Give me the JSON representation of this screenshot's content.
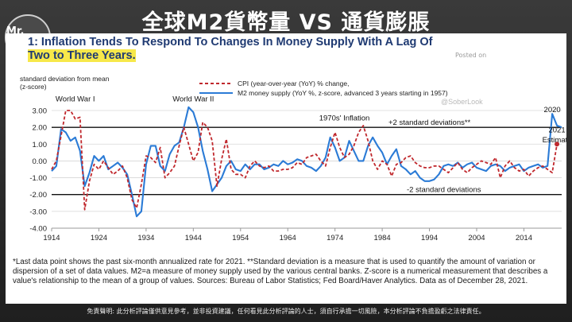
{
  "video": {
    "title": "全球M2貨幣量 VS 通貨膨脹",
    "logo_text": "Mr. Carl",
    "disclaimer": "免責聲明: 此分析評論僅供意見參考，並非投資建議，任何看見此分析評論的人士，須自行承擔一切風險，本分析評論不負擔盈虧之法律責任。"
  },
  "panel": {
    "title_line1": "1: Inflation Tends To Respond To Changes In Money Supply With A Lag Of",
    "title_line2": "Two to Three Years.",
    "posted": "Posted on",
    "watermark": "@SoberLook",
    "footnote": "*Last data point shows the past six-month annualized rate for 2021. **Standard deviation is a measure that is used to quantify the amount of variation or dispersion of a set of data values. M2=a measure of money supply used by the various central banks. Z-score is a numerical measurement that describes a value's relationship to the mean of a group of values. Sources: Bureau of Labor Statistics; Fed Board/Haver Analytics. Data as of December 28, 2021."
  },
  "chart_data": {
    "type": "line",
    "ylabel": "standard deviation from mean (z-score)",
    "ylim": [
      -4.0,
      3.0
    ],
    "yticks": [
      "3.00",
      "2.00",
      "1.00",
      "0.00",
      "-1.00",
      "-2.00",
      "-3.00",
      "-4.00"
    ],
    "xlim": [
      1914,
      2022
    ],
    "xticks": [
      "1914",
      "1924",
      "1934",
      "1944",
      "1954",
      "1964",
      "1974",
      "1984",
      "1994",
      "2004",
      "2014"
    ],
    "reference_lines": [
      {
        "y": 2,
        "label": "+2 standard deviations**"
      },
      {
        "y": -2,
        "label": "-2 standard deviations"
      }
    ],
    "annotations": [
      {
        "text": "World War I",
        "x": 1919,
        "y": 3.55
      },
      {
        "text": "World War II",
        "x": 1944,
        "y": 3.55
      },
      {
        "text": "1970s' Inflation",
        "x": 1976,
        "y": 2.4
      },
      {
        "text": "2020",
        "x": 2020,
        "y": 2.9
      },
      {
        "text": "2021",
        "x": 2021,
        "y": 1.7
      },
      {
        "text": "Estimate",
        "x": 2021,
        "y": 1.1
      }
    ],
    "series": [
      {
        "name": "CPI (year-over-year (YoY) % change,",
        "color": "#c0282d",
        "dash": true,
        "points": [
          [
            1914,
            -0.5
          ],
          [
            1915,
            0.0
          ],
          [
            1916,
            1.5
          ],
          [
            1917,
            3.0
          ],
          [
            1918,
            3.0
          ],
          [
            1919,
            2.5
          ],
          [
            1920,
            2.6
          ],
          [
            1921,
            -2.9
          ],
          [
            1922,
            -1.2
          ],
          [
            1923,
            -0.2
          ],
          [
            1924,
            -0.5
          ],
          [
            1925,
            0.0
          ],
          [
            1926,
            -0.4
          ],
          [
            1927,
            -0.8
          ],
          [
            1928,
            -0.6
          ],
          [
            1929,
            -0.3
          ],
          [
            1930,
            -1.0
          ],
          [
            1931,
            -2.3
          ],
          [
            1932,
            -2.8
          ],
          [
            1933,
            -1.4
          ],
          [
            1934,
            0.3
          ],
          [
            1935,
            0.2
          ],
          [
            1936,
            -0.1
          ],
          [
            1937,
            0.8
          ],
          [
            1938,
            -1.0
          ],
          [
            1939,
            -0.7
          ],
          [
            1940,
            -0.3
          ],
          [
            1941,
            0.9
          ],
          [
            1942,
            2.0
          ],
          [
            1943,
            1.0
          ],
          [
            1944,
            0.0
          ],
          [
            1945,
            0.5
          ],
          [
            1946,
            2.3
          ],
          [
            1947,
            2.0
          ],
          [
            1948,
            1.2
          ],
          [
            1949,
            -1.5
          ],
          [
            1950,
            0.1
          ],
          [
            1951,
            1.3
          ],
          [
            1952,
            -0.5
          ],
          [
            1953,
            -0.8
          ],
          [
            1954,
            -0.8
          ],
          [
            1955,
            -1.0
          ],
          [
            1956,
            -0.3
          ],
          [
            1957,
            0.0
          ],
          [
            1958,
            -0.3
          ],
          [
            1959,
            -0.4
          ],
          [
            1960,
            -0.3
          ],
          [
            1961,
            -0.6
          ],
          [
            1962,
            -0.6
          ],
          [
            1963,
            -0.5
          ],
          [
            1964,
            -0.5
          ],
          [
            1965,
            -0.4
          ],
          [
            1966,
            -0.1
          ],
          [
            1967,
            -0.2
          ],
          [
            1968,
            0.2
          ],
          [
            1969,
            0.3
          ],
          [
            1970,
            0.4
          ],
          [
            1971,
            0.0
          ],
          [
            1972,
            -0.3
          ],
          [
            1973,
            0.8
          ],
          [
            1974,
            1.7
          ],
          [
            1975,
            0.8
          ],
          [
            1976,
            0.2
          ],
          [
            1977,
            0.4
          ],
          [
            1978,
            0.9
          ],
          [
            1979,
            1.7
          ],
          [
            1980,
            2.1
          ],
          [
            1981,
            1.2
          ],
          [
            1982,
            0.0
          ],
          [
            1983,
            -0.5
          ],
          [
            1984,
            0.0
          ],
          [
            1985,
            -0.2
          ],
          [
            1986,
            -0.9
          ],
          [
            1987,
            -0.2
          ],
          [
            1988,
            -0.1
          ],
          [
            1989,
            0.2
          ],
          [
            1990,
            0.3
          ],
          [
            1991,
            -0.1
          ],
          [
            1992,
            -0.3
          ],
          [
            1993,
            -0.4
          ],
          [
            1994,
            -0.4
          ],
          [
            1995,
            -0.3
          ],
          [
            1996,
            -0.3
          ],
          [
            1997,
            -0.5
          ],
          [
            1998,
            -0.7
          ],
          [
            1999,
            -0.4
          ],
          [
            2000,
            -0.1
          ],
          [
            2001,
            -0.5
          ],
          [
            2002,
            -0.7
          ],
          [
            2003,
            -0.4
          ],
          [
            2004,
            -0.2
          ],
          [
            2005,
            0.0
          ],
          [
            2006,
            -0.1
          ],
          [
            2007,
            -0.2
          ],
          [
            2008,
            0.2
          ],
          [
            2009,
            -1.0
          ],
          [
            2010,
            -0.3
          ],
          [
            2011,
            0.0
          ],
          [
            2012,
            -0.4
          ],
          [
            2013,
            -0.6
          ],
          [
            2014,
            -0.5
          ],
          [
            2015,
            -0.9
          ],
          [
            2016,
            -0.6
          ],
          [
            2017,
            -0.4
          ],
          [
            2018,
            -0.3
          ],
          [
            2019,
            -0.5
          ],
          [
            2020,
            -0.7
          ],
          [
            2021,
            1.0
          ]
        ]
      },
      {
        "name": "M2 money supply (YoY %, z-score, advanced 3 years starting in 1957)",
        "color": "#2b7bd6",
        "dash": false,
        "points": [
          [
            1914,
            -0.6
          ],
          [
            1915,
            -0.3
          ],
          [
            1916,
            1.9
          ],
          [
            1917,
            1.7
          ],
          [
            1918,
            1.2
          ],
          [
            1919,
            1.4
          ],
          [
            1920,
            0.6
          ],
          [
            1921,
            -1.5
          ],
          [
            1922,
            -0.7
          ],
          [
            1923,
            0.3
          ],
          [
            1924,
            0.0
          ],
          [
            1925,
            0.3
          ],
          [
            1926,
            -0.5
          ],
          [
            1927,
            -0.3
          ],
          [
            1928,
            -0.1
          ],
          [
            1929,
            -0.4
          ],
          [
            1930,
            -0.8
          ],
          [
            1931,
            -2.0
          ],
          [
            1932,
            -3.3
          ],
          [
            1933,
            -3.0
          ],
          [
            1934,
            -0.2
          ],
          [
            1935,
            0.9
          ],
          [
            1936,
            0.9
          ],
          [
            1937,
            -0.3
          ],
          [
            1938,
            -0.6
          ],
          [
            1939,
            0.4
          ],
          [
            1940,
            0.9
          ],
          [
            1941,
            1.1
          ],
          [
            1942,
            2.0
          ],
          [
            1943,
            3.2
          ],
          [
            1944,
            2.9
          ],
          [
            1945,
            2.0
          ],
          [
            1946,
            0.6
          ],
          [
            1947,
            -0.5
          ],
          [
            1948,
            -1.8
          ],
          [
            1949,
            -1.4
          ],
          [
            1950,
            -1.0
          ],
          [
            1951,
            -0.3
          ],
          [
            1952,
            0.0
          ],
          [
            1953,
            -0.5
          ],
          [
            1954,
            -0.6
          ],
          [
            1955,
            -0.2
          ],
          [
            1956,
            -0.5
          ],
          [
            1957,
            -0.2
          ],
          [
            1958,
            -0.2
          ],
          [
            1959,
            -0.5
          ],
          [
            1960,
            -0.4
          ],
          [
            1961,
            -0.2
          ],
          [
            1962,
            -0.3
          ],
          [
            1963,
            0.0
          ],
          [
            1964,
            -0.2
          ],
          [
            1965,
            -0.1
          ],
          [
            1966,
            0.1
          ],
          [
            1967,
            0.0
          ],
          [
            1968,
            -0.3
          ],
          [
            1969,
            -0.4
          ],
          [
            1970,
            -0.6
          ],
          [
            1971,
            -0.3
          ],
          [
            1972,
            0.2
          ],
          [
            1973,
            1.4
          ],
          [
            1974,
            0.8
          ],
          [
            1975,
            0.0
          ],
          [
            1976,
            0.2
          ],
          [
            1977,
            1.2
          ],
          [
            1978,
            0.6
          ],
          [
            1979,
            0.0
          ],
          [
            1980,
            0.0
          ],
          [
            1981,
            0.9
          ],
          [
            1982,
            1.4
          ],
          [
            1983,
            0.9
          ],
          [
            1984,
            0.5
          ],
          [
            1985,
            -0.2
          ],
          [
            1986,
            0.3
          ],
          [
            1987,
            0.7
          ],
          [
            1988,
            -0.3
          ],
          [
            1989,
            -0.5
          ],
          [
            1990,
            -0.8
          ],
          [
            1991,
            -0.6
          ],
          [
            1992,
            -1.0
          ],
          [
            1993,
            -1.2
          ],
          [
            1994,
            -1.2
          ],
          [
            1995,
            -1.1
          ],
          [
            1996,
            -0.8
          ],
          [
            1997,
            -0.3
          ],
          [
            1998,
            -0.2
          ],
          [
            1999,
            -0.3
          ],
          [
            2000,
            -0.1
          ],
          [
            2001,
            -0.4
          ],
          [
            2002,
            -0.2
          ],
          [
            2003,
            -0.1
          ],
          [
            2004,
            -0.4
          ],
          [
            2005,
            -0.5
          ],
          [
            2006,
            -0.6
          ],
          [
            2007,
            -0.3
          ],
          [
            2008,
            -0.2
          ],
          [
            2009,
            -0.3
          ],
          [
            2010,
            -0.6
          ],
          [
            2011,
            -0.4
          ],
          [
            2012,
            -0.3
          ],
          [
            2013,
            -0.2
          ],
          [
            2014,
            -0.6
          ],
          [
            2015,
            -0.4
          ],
          [
            2016,
            -0.3
          ],
          [
            2017,
            -0.2
          ],
          [
            2018,
            -0.4
          ],
          [
            2019,
            -0.3
          ],
          [
            2020,
            2.8
          ],
          [
            2021,
            2.1
          ],
          [
            2022,
            2.0
          ]
        ]
      }
    ]
  }
}
